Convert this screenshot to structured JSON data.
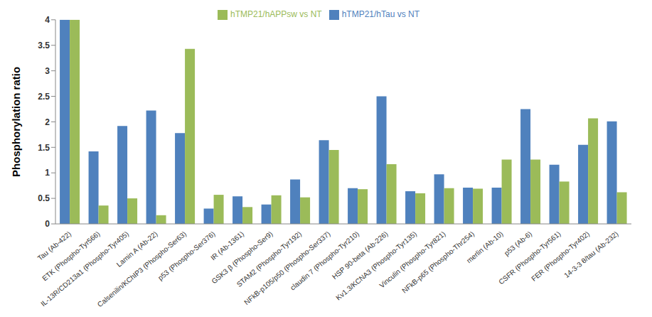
{
  "chart_data": {
    "type": "bar",
    "y_label": "Phosphorylation ratio",
    "categories": [
      "Tau (Ab-422)",
      "ETK (Phospho-Tyr566)",
      "IL-13R/CD213a1 (Phospho-Tyr405)",
      "Lamin A (Ab-22)",
      "Calsenilin/KChIP3 (Phospho-Ser63)",
      "p53 (Phospho-Ser376)",
      "IR (Ab-1361)",
      "GSK3 β (Phospho-Ser9)",
      "STAM2 (Phospho-Tyr192)",
      "NFkB-p105/p50 (Phospho-Ser337)",
      "claudin 7 (Phospho-Tyr210)",
      "HSP 90-beta (Ab-226)",
      "Kv1.3/KCNA3 (Phospho-Tyr135)",
      "Vinculin (Phospho-Tyr821)",
      "NFkB-p65 (Phospho-Thr254)",
      "merlin (Ab-10)",
      "p53 (Ab-6)",
      "CSFR (Phospho-Tyr561)",
      "FER (Phospho-Tyr402)",
      "14-3-3 θ/tau (Ab-232)"
    ],
    "series": [
      {
        "name": "hTMP21/hTau vs NT",
        "color": "#4f81bd",
        "values": [
          4,
          1.42,
          1.92,
          2.22,
          1.78,
          0.3,
          0.54,
          0.38,
          0.87,
          1.64,
          0.7,
          2.5,
          0.64,
          0.97,
          0.71,
          0.71,
          2.25,
          1.16,
          1.55,
          2.01
        ]
      },
      {
        "name": "hTMP21/hAPPsw vs NT",
        "color": "#9bbb59",
        "values": [
          4,
          0.36,
          0.5,
          0.17,
          3.43,
          0.57,
          0.33,
          0.56,
          0.52,
          1.45,
          0.68,
          1.17,
          0.6,
          0.7,
          0.69,
          1.26,
          1.26,
          0.83,
          2.07,
          0.62
        ]
      }
    ],
    "ylim": [
      0,
      4
    ],
    "yticks": [
      0,
      0.5,
      1,
      1.5,
      2,
      2.5,
      3,
      3.5,
      4
    ],
    "legend": "top",
    "grid": false
  }
}
